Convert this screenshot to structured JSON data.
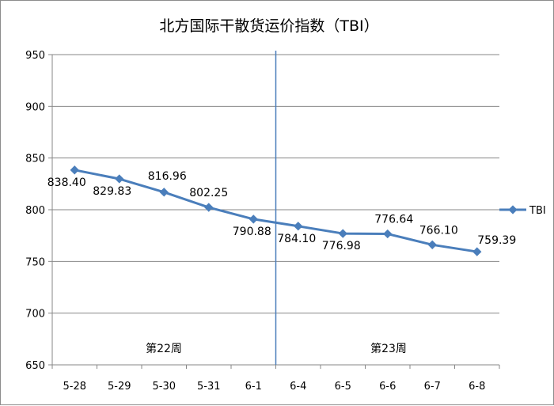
{
  "chart_data": {
    "type": "line",
    "title": "北方国际干散货运价指数（TBI）",
    "categories": [
      "5-28",
      "5-29",
      "5-30",
      "5-31",
      "6-1",
      "6-4",
      "6-5",
      "6-6",
      "6-7",
      "6-8"
    ],
    "series": [
      {
        "name": "TBI",
        "values": [
          838.4,
          829.83,
          816.96,
          802.25,
          790.88,
          784.1,
          776.98,
          776.64,
          766.1,
          759.39
        ],
        "labels": [
          "838.40",
          "829.83",
          "816.96",
          "802.25",
          "790.88",
          "784.10",
          "776.98",
          "776.64",
          "766.10",
          "759.39"
        ],
        "color": "#4a7ebb"
      }
    ],
    "ylim": [
      650,
      950
    ],
    "y_ticks": [
      "650",
      "700",
      "750",
      "800",
      "850",
      "900",
      "950"
    ],
    "grid": true,
    "legend": "right",
    "annotations": [
      "第22周",
      "第23周"
    ],
    "divider_after_category": "6-1"
  }
}
